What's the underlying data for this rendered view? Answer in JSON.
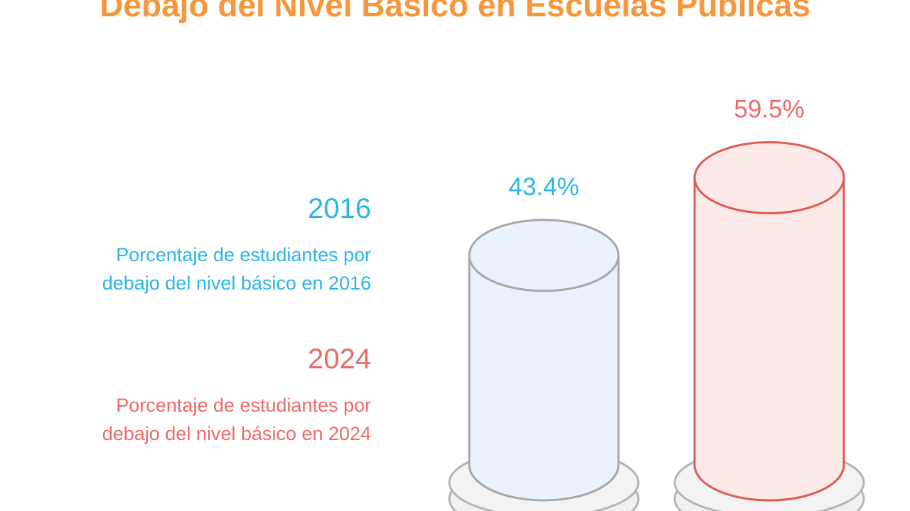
{
  "title": "Debajo del Nivel Básico en Escuelas Públicas",
  "legend": [
    {
      "year": "2016",
      "line1": "Porcentaje de estudiantes por",
      "line2": "debajo del nivel básico en 2016"
    },
    {
      "year": "2024",
      "line1": "Porcentaje de estudiantes por",
      "line2": "debajo del nivel básico en 2024"
    }
  ],
  "chart_data": {
    "type": "bar",
    "title": "Debajo del Nivel Básico en Escuelas Públicas",
    "categories": [
      "2016",
      "2024"
    ],
    "values": [
      43.4,
      59.5
    ],
    "labels": [
      "43.4%",
      "59.5%"
    ],
    "ylabel": "Porcentaje de estudiantes por debajo del nivel básico",
    "colors": {
      "2016": "#2bb5ea",
      "2024": "#ee6a66"
    },
    "fills": {
      "2016": "#eaf2fd",
      "2024": "#fde9e8"
    },
    "strokes": {
      "2016": "#a8a8a8",
      "2024": "#e05a58"
    }
  }
}
